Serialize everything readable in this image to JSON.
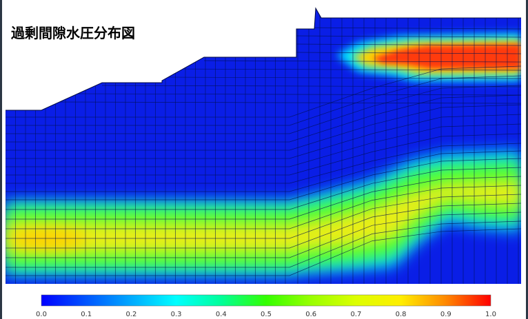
{
  "title": "過剰間隙水圧分布図",
  "colorbar": {
    "ticks": [
      "0.0",
      "0.1",
      "0.2",
      "0.3",
      "0.4",
      "0.5",
      "0.6",
      "0.7",
      "0.8",
      "0.9",
      "1.0"
    ],
    "colors": [
      "#0000ff",
      "#0055ff",
      "#00aaff",
      "#00ffff",
      "#00ff99",
      "#33ff00",
      "#99ff00",
      "#ddff00",
      "#ffee00",
      "#ff8800",
      "#ff0000"
    ]
  },
  "colors": {
    "background": "#ffffff",
    "ground": "#0a1ee6",
    "mesh_line": "#001050",
    "high_zone": "#ff3a10"
  }
}
